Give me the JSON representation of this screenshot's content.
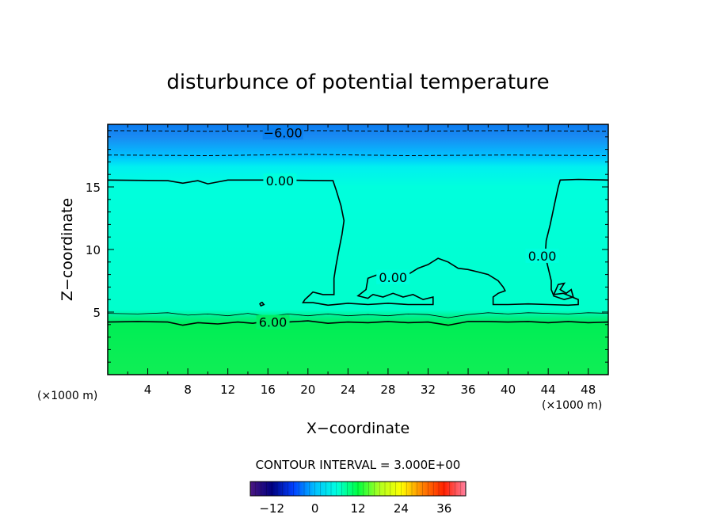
{
  "chart_data": {
    "type": "heatmap",
    "title": "disturbunce of potential temperature",
    "xlabel": "X−coordinate",
    "ylabel": "Z−coordinate",
    "x_unit": "(×1000 m)",
    "y_unit": "(×1000 m)",
    "xlim": [
      0,
      50
    ],
    "ylim": [
      0,
      20
    ],
    "x_ticks": [
      4,
      8,
      12,
      16,
      20,
      24,
      28,
      32,
      36,
      40,
      44,
      48
    ],
    "y_ticks": [
      5,
      10,
      15
    ],
    "contour_interval_text": "CONTOUR INTERVAL = 3.000E+00",
    "contour_interval": 3,
    "contour_labels": [
      {
        "text": "−6.00",
        "x": 17.5,
        "z": 19.35
      },
      {
        "text": "0.00",
        "x": 17.2,
        "z": 15.5
      },
      {
        "text": "0.00",
        "x": 28.5,
        "z": 7.8
      },
      {
        "text": "0.00",
        "x": 43.4,
        "z": 9.5
      },
      {
        "text": "6.00",
        "x": 16.5,
        "z": 4.2
      }
    ],
    "colorbar": {
      "range": [
        -18,
        42
      ],
      "tick_values": [
        -12,
        0,
        12,
        24,
        36
      ],
      "tick_labels": [
        "−12",
        "0",
        "12",
        "24",
        "36"
      ],
      "colors": [
        "#4b1780",
        "#000080",
        "#0040ff",
        "#00c0ff",
        "#00ffe0",
        "#00ff40",
        "#b0ff20",
        "#ffff00",
        "#ff8000",
        "#ff2000",
        "#ff80a0"
      ]
    },
    "field_colors": {
      "top": "#0a7cf0",
      "upper": "#00c4ff",
      "middle": "#00ffdd",
      "lower": "#00ee55"
    },
    "contours": [
      {
        "level": -6,
        "style": "dashed",
        "points": [
          [
            0,
            19.5
          ],
          [
            10,
            19.45
          ],
          [
            20,
            19.5
          ],
          [
            30,
            19.45
          ],
          [
            40,
            19.5
          ],
          [
            50,
            19.45
          ]
        ]
      },
      {
        "level": -3,
        "style": "dashed",
        "points": [
          [
            0,
            17.55
          ],
          [
            10,
            17.5
          ],
          [
            20,
            17.6
          ],
          [
            30,
            17.5
          ],
          [
            40,
            17.55
          ],
          [
            50,
            17.5
          ]
        ]
      },
      {
        "level": 0,
        "style": "solid",
        "points": [
          [
            0,
            15.55
          ],
          [
            6,
            15.5
          ],
          [
            7.5,
            15.3
          ],
          [
            9,
            15.5
          ],
          [
            10,
            15.25
          ],
          [
            12,
            15.55
          ],
          [
            17,
            15.55
          ],
          [
            22.5,
            15.5
          ],
          [
            22.8,
            14.8
          ],
          [
            23.3,
            13.5
          ],
          [
            23.6,
            12.3
          ],
          [
            23.4,
            11.2
          ],
          [
            23.1,
            10
          ],
          [
            22.8,
            8.7
          ],
          [
            22.6,
            7.7
          ],
          [
            22.6,
            6.4
          ],
          [
            21.5,
            6.4
          ],
          [
            20.5,
            6.6
          ],
          [
            20.1,
            6.3
          ],
          [
            19.7,
            6.0
          ],
          [
            19.5,
            5.75
          ],
          [
            20.5,
            5.75
          ],
          [
            22,
            5.55
          ],
          [
            24,
            5.7
          ],
          [
            26,
            5.6
          ],
          [
            28,
            5.7
          ],
          [
            30,
            5.6
          ],
          [
            32,
            5.6
          ],
          [
            32.5,
            5.6
          ],
          [
            32.5,
            6.2
          ],
          [
            31.5,
            6.0
          ],
          [
            30.5,
            6.4
          ],
          [
            29.5,
            6.2
          ],
          [
            28.5,
            6.5
          ],
          [
            27.5,
            6.2
          ],
          [
            26.5,
            6.4
          ],
          [
            26.3,
            6.3
          ],
          [
            26,
            6.1
          ],
          [
            25,
            6.3
          ],
          [
            25.8,
            6.8
          ],
          [
            26,
            7.7
          ],
          [
            27,
            8.0
          ],
          [
            28.5,
            8.1
          ],
          [
            30,
            8.0
          ],
          [
            31,
            8.5
          ],
          [
            32,
            8.8
          ],
          [
            33,
            9.3
          ],
          [
            34,
            9.0
          ],
          [
            35,
            8.5
          ],
          [
            36,
            8.4
          ],
          [
            37,
            8.2
          ],
          [
            38,
            8.0
          ],
          [
            39,
            7.5
          ],
          [
            39.5,
            7.0
          ],
          [
            39.7,
            6.7
          ],
          [
            39,
            6.5
          ],
          [
            38.5,
            6.2
          ],
          [
            38.5,
            5.6
          ],
          [
            40,
            5.6
          ],
          [
            42,
            5.65
          ],
          [
            44,
            5.6
          ],
          [
            46,
            5.55
          ],
          [
            47,
            5.6
          ],
          [
            47,
            6.0
          ],
          [
            45.5,
            6.5
          ],
          [
            44.5,
            6.4
          ],
          [
            44.3,
            6.8
          ],
          [
            44.3,
            7.5
          ],
          [
            44,
            8.5
          ],
          [
            43.7,
            9.5
          ],
          [
            43.8,
            10.7
          ],
          [
            44.2,
            12
          ],
          [
            44.6,
            13.5
          ],
          [
            45,
            15.0
          ],
          [
            45.2,
            15.55
          ],
          [
            47,
            15.6
          ],
          [
            50,
            15.55
          ]
        ]
      },
      {
        "level": 0,
        "style": "solid",
        "points": [
          [
            15.4,
            5.8
          ],
          [
            15.6,
            5.6
          ],
          [
            15.3,
            5.5
          ],
          [
            15.2,
            5.65
          ],
          [
            15.4,
            5.8
          ]
        ]
      },
      {
        "level": 0,
        "style": "solid",
        "points": [
          [
            44.5,
            6.3
          ],
          [
            45,
            7.2
          ],
          [
            45.6,
            7.3
          ],
          [
            45.2,
            6.8
          ],
          [
            45.8,
            6.5
          ],
          [
            46.3,
            6.8
          ],
          [
            46.5,
            6.2
          ],
          [
            45.6,
            6.0
          ],
          [
            44.5,
            6.3
          ]
        ]
      },
      {
        "level": 3,
        "style": "thin",
        "points": [
          [
            0,
            4.9
          ],
          [
            3,
            4.85
          ],
          [
            6,
            4.95
          ],
          [
            8,
            4.75
          ],
          [
            10,
            4.85
          ],
          [
            12,
            4.7
          ],
          [
            14,
            4.9
          ],
          [
            16,
            4.65
          ],
          [
            18,
            4.85
          ],
          [
            20,
            4.7
          ],
          [
            22,
            4.85
          ],
          [
            24,
            4.7
          ],
          [
            26,
            4.8
          ],
          [
            28,
            4.7
          ],
          [
            30,
            4.85
          ],
          [
            32,
            4.8
          ],
          [
            34,
            4.55
          ],
          [
            36,
            4.8
          ],
          [
            38,
            4.95
          ],
          [
            40,
            4.85
          ],
          [
            42,
            4.95
          ],
          [
            44,
            4.9
          ],
          [
            46,
            4.85
          ],
          [
            48,
            4.95
          ],
          [
            50,
            4.9
          ]
        ]
      },
      {
        "level": 6,
        "style": "solid",
        "points": [
          [
            0,
            4.2
          ],
          [
            3,
            4.25
          ],
          [
            6,
            4.2
          ],
          [
            7.5,
            3.95
          ],
          [
            9,
            4.15
          ],
          [
            11,
            4.05
          ],
          [
            13,
            4.2
          ],
          [
            14.5,
            4.1
          ],
          [
            16,
            4.3
          ],
          [
            18,
            4.2
          ],
          [
            20,
            4.3
          ],
          [
            22,
            4.1
          ],
          [
            24,
            4.2
          ],
          [
            26,
            4.15
          ],
          [
            28,
            4.25
          ],
          [
            30,
            4.15
          ],
          [
            32,
            4.2
          ],
          [
            34,
            3.95
          ],
          [
            36,
            4.25
          ],
          [
            38,
            4.25
          ],
          [
            40,
            4.2
          ],
          [
            42,
            4.25
          ],
          [
            44,
            4.15
          ],
          [
            46,
            4.25
          ],
          [
            48,
            4.15
          ],
          [
            50,
            4.2
          ]
        ]
      }
    ]
  }
}
